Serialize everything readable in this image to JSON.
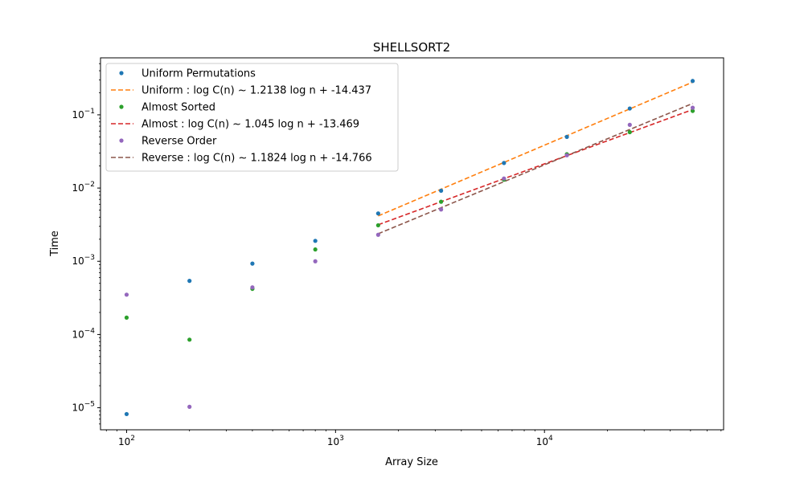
{
  "chart_data": {
    "type": "scatter",
    "title": "SHELLSORT2",
    "xlabel": "Array Size",
    "ylabel": "Time",
    "xscale": "log",
    "yscale": "log",
    "xlim": [
      75,
      72000
    ],
    "ylim": [
      5e-06,
      0.6
    ],
    "grid": false,
    "legend_position": "top-left",
    "x_ticks": [
      {
        "value": 100,
        "mant": "10",
        "exp": "2"
      },
      {
        "value": 1000,
        "mant": "10",
        "exp": "3"
      },
      {
        "value": 10000,
        "mant": "10",
        "exp": "4"
      }
    ],
    "y_ticks": [
      {
        "value": 1e-05,
        "mant": "10",
        "exp": "−5"
      },
      {
        "value": 0.0001,
        "mant": "10",
        "exp": "−4"
      },
      {
        "value": 0.001,
        "mant": "10",
        "exp": "−3"
      },
      {
        "value": 0.01,
        "mant": "10",
        "exp": "−2"
      },
      {
        "value": 0.1,
        "mant": "10",
        "exp": "−1"
      }
    ],
    "series": [
      {
        "name": "Uniform Permutations",
        "kind": "points",
        "color": "#1f77b4",
        "x": [
          100,
          200,
          400,
          800,
          1600,
          3200,
          6400,
          12800,
          25600,
          51200
        ],
        "y": [
          8.2e-06,
          0.00054,
          0.00093,
          0.0019,
          0.0045,
          0.0092,
          0.022,
          0.05,
          0.122,
          0.29
        ]
      },
      {
        "name": "Uniform : log C(n) ~  1.2138 log n + -14.437",
        "kind": "fit",
        "color": "#ff7f0e",
        "slope": 1.2138,
        "intercept": -14.437,
        "x_range": [
          1600,
          51200
        ]
      },
      {
        "name": "Almost Sorted",
        "kind": "points",
        "color": "#2ca02c",
        "x": [
          100,
          200,
          400,
          800,
          1600,
          3200,
          6400,
          12800,
          25600,
          51200
        ],
        "y": [
          0.00017,
          8.5e-05,
          0.00042,
          0.00145,
          0.0031,
          0.0065,
          0.013,
          0.029,
          0.058,
          0.113
        ]
      },
      {
        "name": "Almost : log C(n) ~  1.045 log n + -13.469",
        "kind": "fit",
        "color": "#d62728",
        "slope": 1.045,
        "intercept": -13.469,
        "x_range": [
          1600,
          51200
        ]
      },
      {
        "name": "Reverse Order",
        "kind": "points",
        "color": "#9467bd",
        "x": [
          100,
          200,
          400,
          800,
          1600,
          3200,
          6400,
          12800,
          25600,
          51200
        ],
        "y": [
          0.00035,
          1.03e-05,
          0.00044,
          0.001,
          0.0023,
          0.0051,
          0.0135,
          0.028,
          0.073,
          0.125
        ]
      },
      {
        "name": "Reverse : log C(n) ~  1.1824 log n + -14.766",
        "kind": "fit",
        "color": "#8c564b",
        "slope": 1.1824,
        "intercept": -14.766,
        "x_range": [
          1600,
          51200
        ]
      }
    ]
  }
}
